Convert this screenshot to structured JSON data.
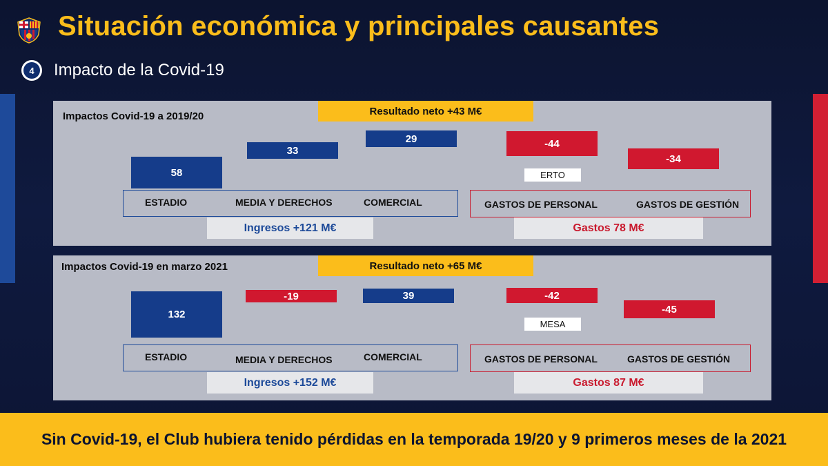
{
  "header": {
    "title": "Situación económica y principales causantes",
    "step_number": "4",
    "subtitle": "Impacto de la Covid-19"
  },
  "colors": {
    "accent_yellow": "#fbbd1b",
    "blue": "#153c8a",
    "red": "#d0182f",
    "navy": "#0c1430"
  },
  "panels": [
    {
      "title": "Impactos Covid-19 a 2019/20",
      "net_result": "Resultado neto +43 M€",
      "values": {
        "estadio": "58",
        "media": "33",
        "comercial": "29",
        "personal": "-44",
        "gestion": "-34"
      },
      "personal_tag": "ERTO",
      "categories": {
        "estadio": "ESTADIO",
        "media": "MEDIA Y DERECHOS",
        "comercial": "COMERCIAL",
        "personal": "GASTOS DE PERSONAL",
        "gestion": "GASTOS DE GESTIÓN"
      },
      "income_total": "Ingresos +121 M€",
      "expense_total": "Gastos 78 M€"
    },
    {
      "title": "Impactos Covid-19 en marzo 2021",
      "net_result": "Resultado neto +65 M€",
      "values": {
        "estadio": "132",
        "media": "-19",
        "comercial": "39",
        "personal": "-42",
        "gestion": "-45"
      },
      "personal_tag": "MESA",
      "categories": {
        "estadio": "ESTADIO",
        "media": "MEDIA Y DERECHOS",
        "comercial": "COMERCIAL",
        "personal": "GASTOS DE PERSONAL",
        "gestion": "GASTOS DE GESTIÓN"
      },
      "income_total": "Ingresos +152 M€",
      "expense_total": "Gastos 87 M€"
    }
  ],
  "footer": {
    "text": "Sin Covid-19, el Club hubiera tenido pérdidas en la temporada 19/20 y 9 primeros meses de la 2021"
  }
}
